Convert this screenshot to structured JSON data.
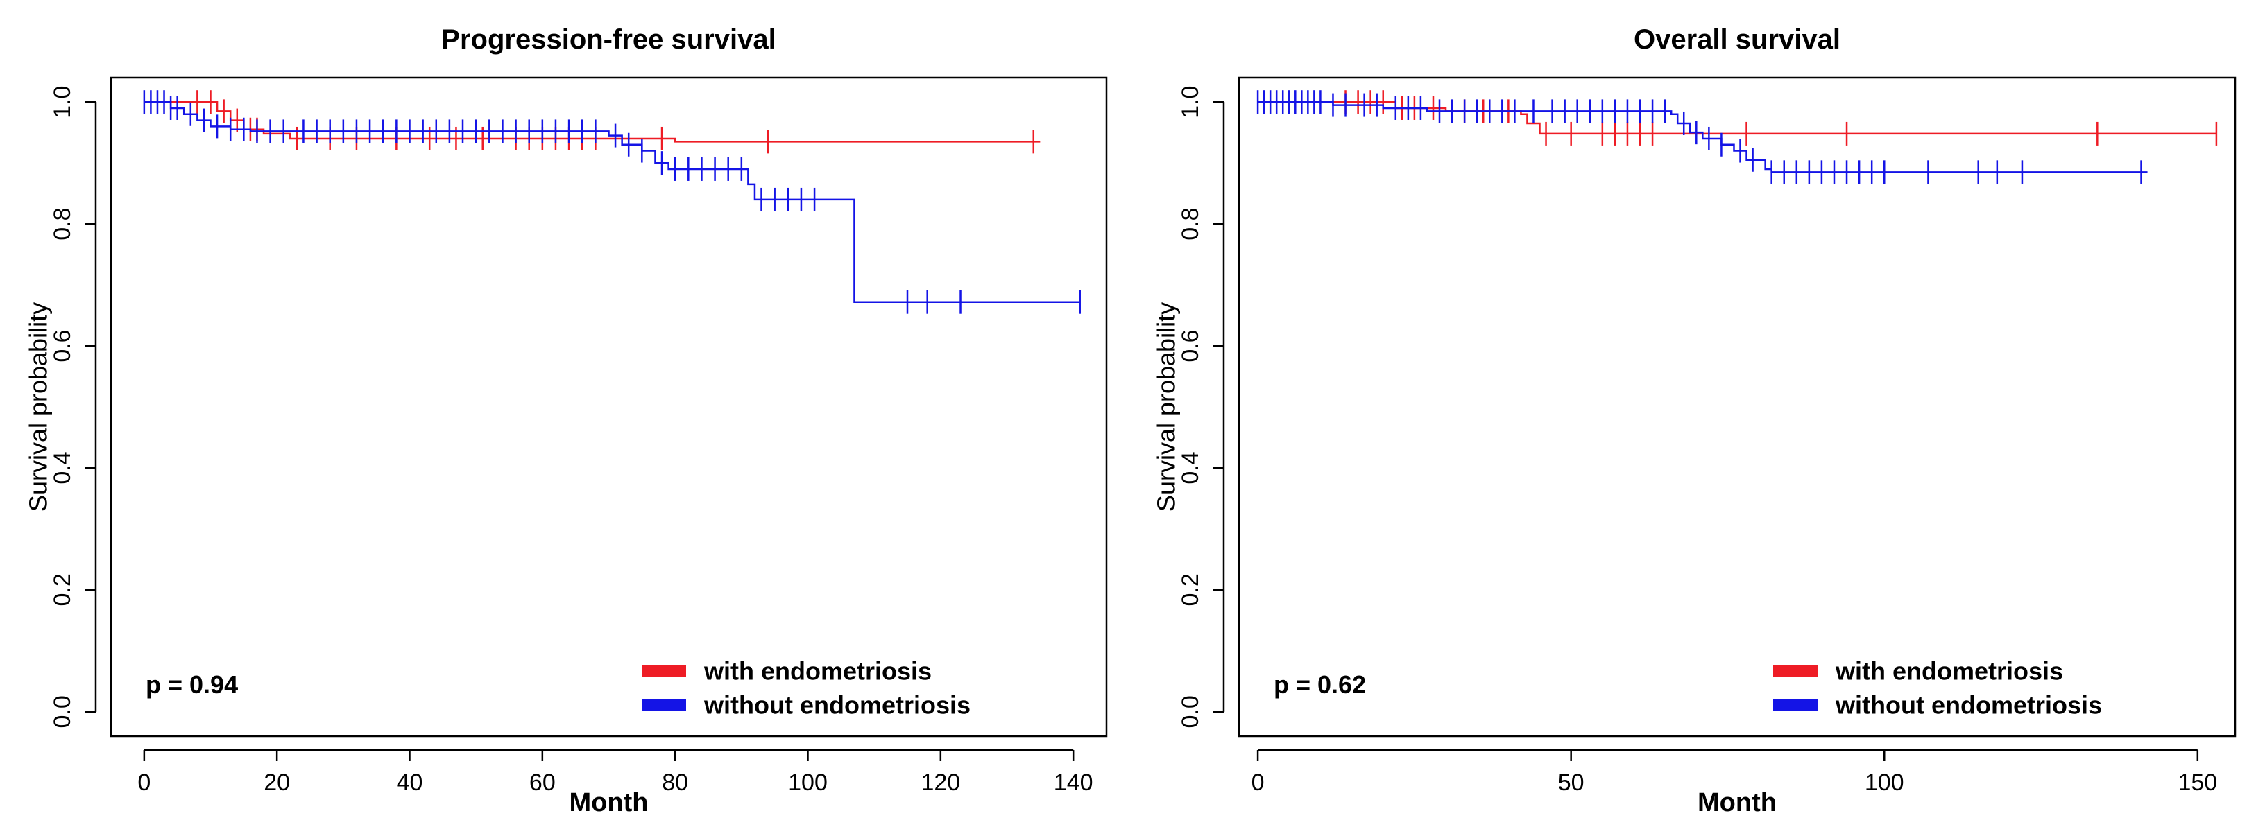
{
  "chart_data": [
    {
      "type": "line",
      "subtype": "kaplan-meier",
      "title": "Progression-free survival",
      "xlabel": "Month",
      "ylabel": "Survival probability",
      "xlim": [
        -5,
        145
      ],
      "ylim": [
        -0.04,
        1.04
      ],
      "xticks": [
        0,
        20,
        40,
        60,
        80,
        100,
        120,
        140
      ],
      "yticks": [
        0.0,
        0.2,
        0.4,
        0.6,
        0.8,
        1.0
      ],
      "ytick_labels": [
        "0.0",
        "0.2",
        "0.4",
        "0.6",
        "0.8",
        "1.0"
      ],
      "pvalue_text": "p = 0.94",
      "legend_position": "bottom-right",
      "series": [
        {
          "name": "with endometriosis",
          "color": "#ee1c25",
          "steps": [
            [
              0,
              1.0
            ],
            [
              10,
              1.0
            ],
            [
              11,
              0.985
            ],
            [
              13,
              0.97
            ],
            [
              15,
              0.955
            ],
            [
              18,
              0.948
            ],
            [
              22,
              0.94
            ],
            [
              80,
              0.935
            ],
            [
              135,
              0.935
            ]
          ],
          "censor_times": [
            8,
            10,
            12,
            14,
            16,
            17,
            23,
            28,
            32,
            38,
            43,
            47,
            51,
            56,
            58,
            60,
            62,
            64,
            66,
            68,
            78,
            94,
            134
          ]
        },
        {
          "name": "without endometriosis",
          "color": "#1414e6",
          "steps": [
            [
              0,
              1.0
            ],
            [
              3,
              1.0
            ],
            [
              4,
              0.99
            ],
            [
              6,
              0.98
            ],
            [
              8,
              0.97
            ],
            [
              10,
              0.96
            ],
            [
              13,
              0.955
            ],
            [
              16,
              0.952
            ],
            [
              70,
              0.945
            ],
            [
              72,
              0.93
            ],
            [
              75,
              0.92
            ],
            [
              77,
              0.9
            ],
            [
              79,
              0.89
            ],
            [
              90,
              0.89
            ],
            [
              91,
              0.865
            ],
            [
              92,
              0.84
            ],
            [
              107,
              0.84
            ],
            [
              107,
              0.672
            ],
            [
              141,
              0.672
            ]
          ],
          "censor_times": [
            0,
            1,
            2,
            3,
            4,
            5,
            7,
            9,
            11,
            13,
            15,
            17,
            19,
            21,
            24,
            26,
            28,
            30,
            32,
            34,
            36,
            38,
            40,
            42,
            44,
            46,
            48,
            50,
            52,
            54,
            56,
            58,
            60,
            62,
            64,
            66,
            68,
            71,
            73,
            75,
            78,
            80,
            82,
            84,
            86,
            88,
            90,
            93,
            95,
            97,
            99,
            101,
            115,
            118,
            123,
            141
          ]
        }
      ]
    },
    {
      "type": "line",
      "subtype": "kaplan-meier",
      "title": "Overall survival",
      "xlabel": "Month",
      "ylabel": "Survival probability",
      "xlim": [
        -3,
        156
      ],
      "ylim": [
        -0.04,
        1.04
      ],
      "xticks": [
        0,
        50,
        100,
        150
      ],
      "yticks": [
        0.0,
        0.2,
        0.4,
        0.6,
        0.8,
        1.0
      ],
      "ytick_labels": [
        "0.0",
        "0.2",
        "0.4",
        "0.6",
        "0.8",
        "1.0"
      ],
      "pvalue_text": "p = 0.62",
      "legend_position": "bottom-right",
      "series": [
        {
          "name": "with endometriosis",
          "color": "#ee1c25",
          "steps": [
            [
              0,
              1.0
            ],
            [
              20,
              1.0
            ],
            [
              22,
              0.99
            ],
            [
              30,
              0.985
            ],
            [
              42,
              0.98
            ],
            [
              43,
              0.965
            ],
            [
              45,
              0.948
            ],
            [
              153,
              0.948
            ]
          ],
          "censor_times": [
            14,
            16,
            18,
            20,
            23,
            25,
            28,
            33,
            36,
            40,
            46,
            50,
            55,
            57,
            59,
            61,
            63,
            78,
            94,
            134,
            153
          ]
        },
        {
          "name": "without endometriosis",
          "color": "#1414e6",
          "steps": [
            [
              0,
              1.0
            ],
            [
              10,
              1.0
            ],
            [
              12,
              0.995
            ],
            [
              20,
              0.99
            ],
            [
              27,
              0.985
            ],
            [
              66,
              0.98
            ],
            [
              67,
              0.965
            ],
            [
              69,
              0.95
            ],
            [
              71,
              0.94
            ],
            [
              74,
              0.93
            ],
            [
              76,
              0.92
            ],
            [
              78,
              0.905
            ],
            [
              81,
              0.89
            ],
            [
              82,
              0.885
            ],
            [
              142,
              0.885
            ]
          ],
          "censor_times": [
            0,
            1,
            2,
            3,
            4,
            5,
            6,
            7,
            8,
            9,
            10,
            12,
            14,
            17,
            19,
            22,
            24,
            26,
            29,
            31,
            33,
            35,
            37,
            39,
            41,
            44,
            47,
            49,
            51,
            53,
            55,
            57,
            59,
            61,
            63,
            65,
            68,
            70,
            72,
            74,
            77,
            79,
            82,
            84,
            86,
            88,
            90,
            92,
            94,
            96,
            98,
            100,
            107,
            115,
            118,
            122,
            141
          ]
        }
      ]
    }
  ]
}
